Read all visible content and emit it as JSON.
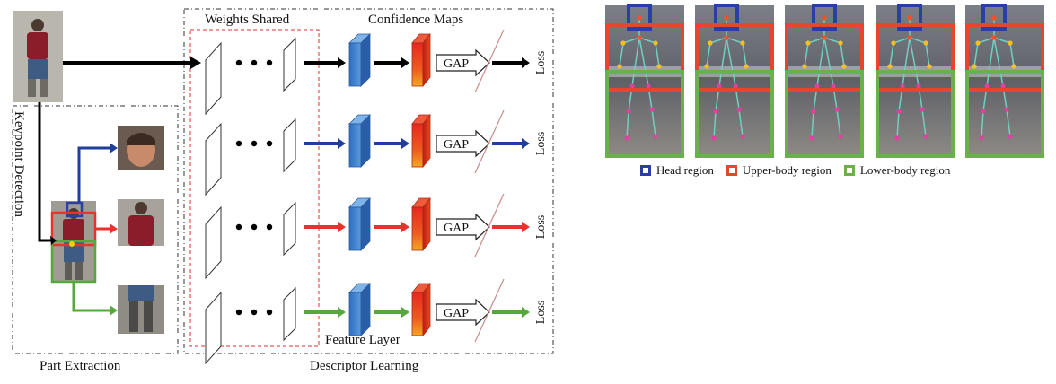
{
  "labels": {
    "weights_shared": "Weights Shared",
    "confidence_maps": "Confidence Maps",
    "keypoint_detection": "Keypoint Detection",
    "feature_layer": "Feature Layer",
    "part_extraction": "Part Extraction",
    "descriptor_learning": "Descriptor Learning",
    "gap": "GAP",
    "loss": "Loss"
  },
  "branches": [
    {
      "part": "full",
      "color": "#000000"
    },
    {
      "part": "head",
      "color": "#1f3f9a"
    },
    {
      "part": "upper",
      "color": "#e8322c"
    },
    {
      "part": "lower",
      "color": "#56a83c"
    }
  ],
  "legend": [
    {
      "label": "Head region",
      "color": "#2a3fa6"
    },
    {
      "label": "Upper-body region",
      "color": "#e8452f"
    },
    {
      "label": "Lower-body region",
      "color": "#6ab04c"
    }
  ]
}
